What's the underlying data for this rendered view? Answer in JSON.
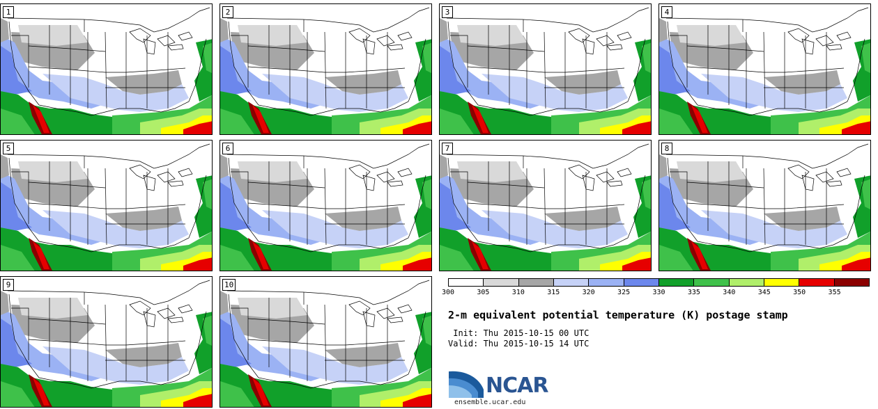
{
  "panels": [
    {
      "number": "1"
    },
    {
      "number": "2"
    },
    {
      "number": "3"
    },
    {
      "number": "4"
    },
    {
      "number": "5"
    },
    {
      "number": "6"
    },
    {
      "number": "7"
    },
    {
      "number": "8"
    },
    {
      "number": "9"
    },
    {
      "number": "10"
    }
  ],
  "colorbar": {
    "labels": [
      "300",
      "305",
      "310",
      "315",
      "320",
      "325",
      "330",
      "335",
      "340",
      "345",
      "350",
      "355"
    ],
    "colors": [
      "#ffffff",
      "#d9d9d9",
      "#a6a6a6",
      "#c6d2f7",
      "#9bb2f4",
      "#6c87ec",
      "#11a02a",
      "#3fc14a",
      "#b0ef6a",
      "#ffff00",
      "#e60000",
      "#8b0000"
    ]
  },
  "title": "2-m equivalent potential temperature (K) postage stamp",
  "init": " Init: Thu 2015-10-15 00 UTC",
  "valid": "Valid: Thu 2015-10-15 14 UTC",
  "logo": {
    "text": "NCAR",
    "url": "ensemble.ucar.edu"
  }
}
